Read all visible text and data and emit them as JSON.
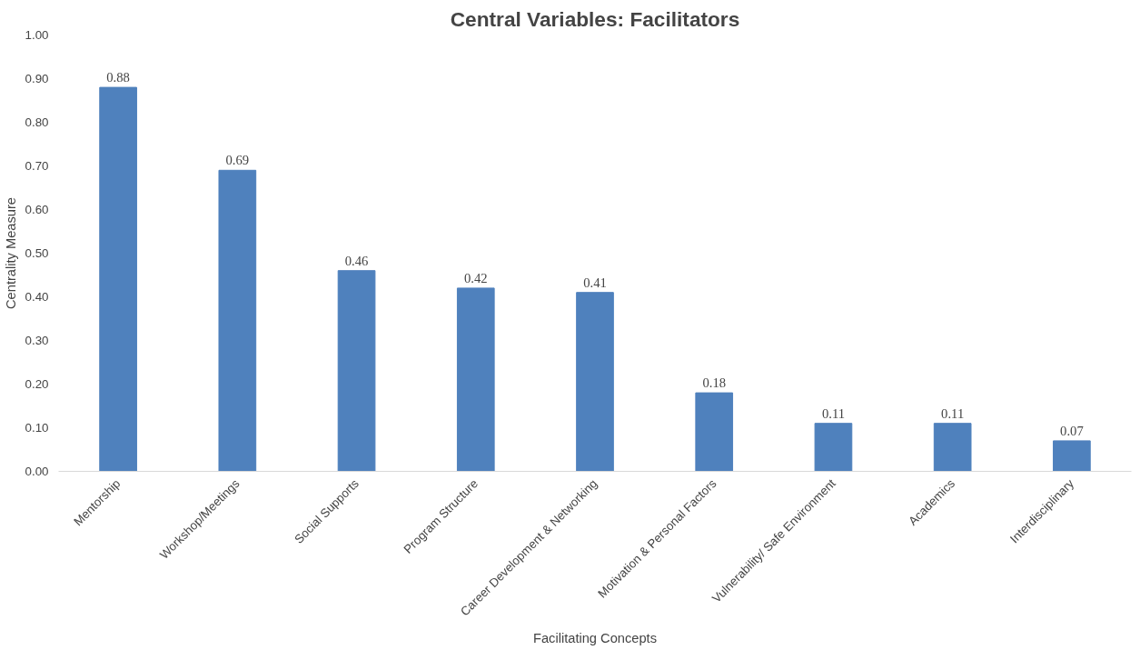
{
  "chart_data": {
    "type": "bar",
    "title": "Central Variables: Facilitators",
    "xlabel": "Facilitating Concepts",
    "ylabel": "Centrality Measure",
    "categories": [
      "Mentorship",
      "Workshop/Meetings",
      "Social Supports",
      "Program Structure",
      "Career Development & Networking",
      "Motivation & Personal Factors",
      "Vulnerability/ Safe Environment",
      "Academics",
      "Interdisciplinary"
    ],
    "values": [
      0.88,
      0.69,
      0.46,
      0.42,
      0.41,
      0.18,
      0.11,
      0.11,
      0.07
    ],
    "color": "#4f81bd",
    "data_labels": true,
    "ylim": [
      0,
      1
    ],
    "yticks": [
      {
        "value": 0,
        "label": "0.00"
      },
      {
        "value": 0.1,
        "label": "0.10"
      },
      {
        "value": 0.2,
        "label": "0.20"
      },
      {
        "value": 0.3,
        "label": "0.30"
      },
      {
        "value": 0.4,
        "label": "0.40"
      },
      {
        "value": 0.5,
        "label": "0.50"
      },
      {
        "value": 0.6,
        "label": "0.60"
      },
      {
        "value": 0.7,
        "label": "0.70"
      },
      {
        "value": 0.8,
        "label": "0.80"
      },
      {
        "value": 0.9,
        "label": "0.90"
      },
      {
        "value": 1,
        "label": "1.00"
      }
    ]
  }
}
